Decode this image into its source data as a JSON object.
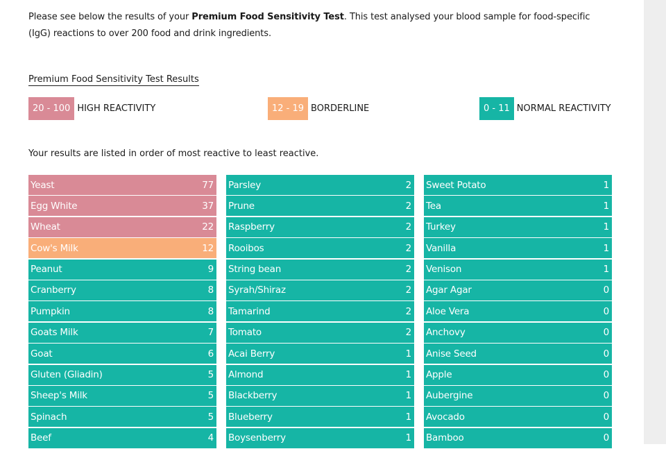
{
  "intro": {
    "prefix": "Please see below the results of your ",
    "bold": "Premium Food Sensitivity Test",
    "suffix": ". This test analysed your blood sample for food-specific (IgG) reactions to over 200 food and drink ingredients."
  },
  "results_heading": "Premium Food Sensitivity Test Results",
  "legend": [
    {
      "range": "20 - 100",
      "label": "HIGH REACTIVITY",
      "color": "#d98a96"
    },
    {
      "range": "12 - 19",
      "label": "BORDERLINE",
      "color": "#f9ae79"
    },
    {
      "range": "0 - 11",
      "label": "NORMAL REACTIVITY",
      "color": "#16b5a5"
    }
  ],
  "order_note": "Your results are listed in order of most reactive to least reactive.",
  "columns": [
    [
      {
        "food": "Yeast",
        "score": "77",
        "level": "high"
      },
      {
        "food": "Egg White",
        "score": "37",
        "level": "high"
      },
      {
        "food": "Wheat",
        "score": "22",
        "level": "high"
      },
      {
        "food": "Cow's Milk",
        "score": "12",
        "level": "border"
      },
      {
        "food": "Peanut",
        "score": "9",
        "level": "normal"
      },
      {
        "food": "Cranberry",
        "score": "8",
        "level": "normal"
      },
      {
        "food": "Pumpkin",
        "score": "8",
        "level": "normal"
      },
      {
        "food": "Goats Milk",
        "score": "7",
        "level": "normal"
      },
      {
        "food": "Goat",
        "score": "6",
        "level": "normal"
      },
      {
        "food": "Gluten (Gliadin)",
        "score": "5",
        "level": "normal"
      },
      {
        "food": "Sheep's Milk",
        "score": "5",
        "level": "normal"
      },
      {
        "food": "Spinach",
        "score": "5",
        "level": "normal"
      },
      {
        "food": "Beef",
        "score": "4",
        "level": "normal"
      }
    ],
    [
      {
        "food": "Parsley",
        "score": "2",
        "level": "normal"
      },
      {
        "food": "Prune",
        "score": "2",
        "level": "normal"
      },
      {
        "food": "Raspberry",
        "score": "2",
        "level": "normal"
      },
      {
        "food": "Rooibos",
        "score": "2",
        "level": "normal"
      },
      {
        "food": "String bean",
        "score": "2",
        "level": "normal"
      },
      {
        "food": "Syrah/Shiraz",
        "score": "2",
        "level": "normal"
      },
      {
        "food": "Tamarind",
        "score": "2",
        "level": "normal"
      },
      {
        "food": "Tomato",
        "score": "2",
        "level": "normal"
      },
      {
        "food": "Acai Berry",
        "score": "1",
        "level": "normal"
      },
      {
        "food": "Almond",
        "score": "1",
        "level": "normal"
      },
      {
        "food": "Blackberry",
        "score": "1",
        "level": "normal"
      },
      {
        "food": "Blueberry",
        "score": "1",
        "level": "normal"
      },
      {
        "food": "Boysenberry",
        "score": "1",
        "level": "normal"
      }
    ],
    [
      {
        "food": "Sweet Potato",
        "score": "1",
        "level": "normal"
      },
      {
        "food": "Tea",
        "score": "1",
        "level": "normal"
      },
      {
        "food": "Turkey",
        "score": "1",
        "level": "normal"
      },
      {
        "food": "Vanilla",
        "score": "1",
        "level": "normal"
      },
      {
        "food": "Venison",
        "score": "1",
        "level": "normal"
      },
      {
        "food": "Agar Agar",
        "score": "0",
        "level": "normal"
      },
      {
        "food": "Aloe Vera",
        "score": "0",
        "level": "normal"
      },
      {
        "food": "Anchovy",
        "score": "0",
        "level": "normal"
      },
      {
        "food": "Anise Seed",
        "score": "0",
        "level": "normal"
      },
      {
        "food": "Apple",
        "score": "0",
        "level": "normal"
      },
      {
        "food": "Aubergine",
        "score": "0",
        "level": "normal"
      },
      {
        "food": "Avocado",
        "score": "0",
        "level": "normal"
      },
      {
        "food": "Bamboo",
        "score": "0",
        "level": "normal"
      }
    ]
  ]
}
